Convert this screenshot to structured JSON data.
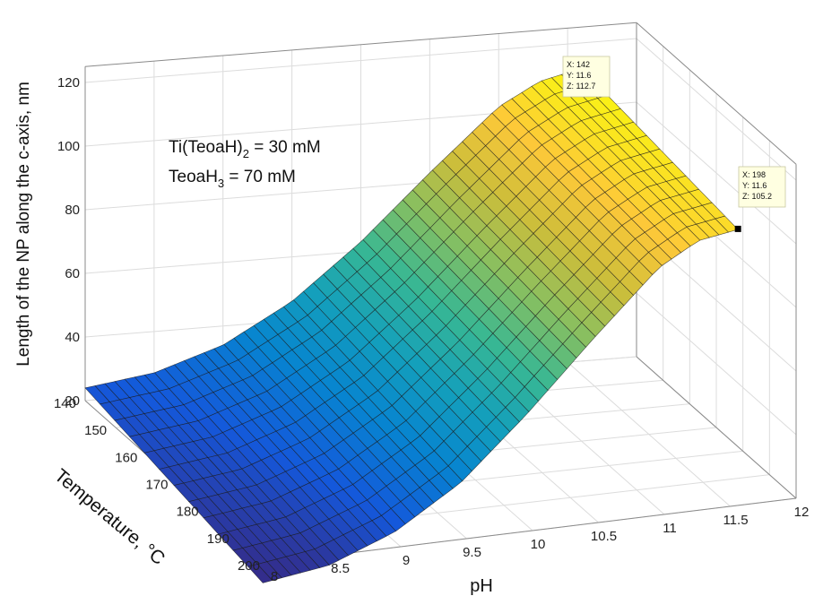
{
  "chart_data": {
    "type": "surface",
    "xlabel": "pH",
    "ylabel": "Temperature, °C",
    "zlabel": "Length of the NP along the c-axis, nm",
    "x_ticks": [
      "8",
      "8.5",
      "9",
      "9.5",
      "10",
      "10.5",
      "11",
      "11.5",
      "12"
    ],
    "y_ticks": [
      "140",
      "150",
      "160",
      "170",
      "180",
      "190",
      "200"
    ],
    "z_ticks": [
      "20",
      "40",
      "60",
      "80",
      "100",
      "120"
    ],
    "xlim": [
      8,
      12
    ],
    "ylim": [
      140,
      200
    ],
    "zlim": [
      20,
      120
    ],
    "surface_x_range": [
      8,
      11.6
    ],
    "surface_y_range": [
      140,
      198
    ],
    "z_profile_vs_pH": {
      "x": [
        8.0,
        8.5,
        9.0,
        9.5,
        10.0,
        10.5,
        11.0,
        11.3,
        11.6
      ],
      "z_at_140C": [
        24,
        27,
        34,
        46,
        63,
        83,
        102,
        109,
        112
      ],
      "z_at_198C": [
        12,
        15,
        23,
        36,
        55,
        76,
        96,
        103,
        105
      ]
    },
    "colormap": "parula",
    "grid": true,
    "annotations": [
      {
        "line1": {
          "pre": "Ti(TeoaH)",
          "sub": "2",
          "post": " = 30 mM"
        },
        "line2": {
          "pre": "TeoaH",
          "sub": "3",
          "post": " = 70 mM"
        }
      }
    ],
    "datatips": [
      {
        "x": "X: 142",
        "y": "Y: 11.6",
        "z": "Z: 112.7"
      },
      {
        "x": "X: 198",
        "y": "Y: 11.6",
        "z": "Z: 105.2"
      }
    ]
  }
}
